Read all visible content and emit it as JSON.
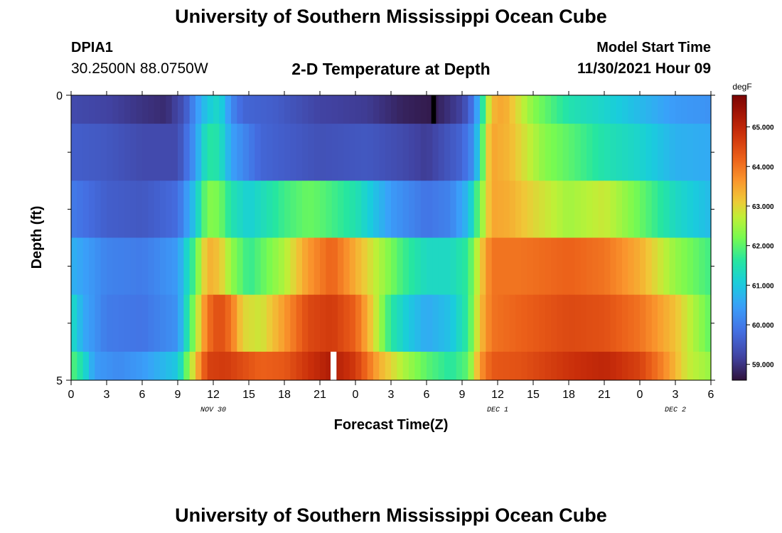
{
  "page": {
    "title_top": "University of Southern Mississippi Ocean Cube",
    "title_bottom": "University of Southern Mississippi Ocean Cube",
    "station": "DPIA1",
    "location": "30.2500N  88.0750W",
    "chart_title": "2-D Temperature at Depth",
    "model_label": "Model Start Time",
    "model_time": "11/30/2021 Hour 09"
  },
  "chart_data": {
    "type": "heatmap",
    "title": "2-D Temperature at Depth",
    "xlabel": "Forecast Time(Z)",
    "ylabel": "Depth (ft)",
    "xlim": [
      0,
      54
    ],
    "ylim": [
      0,
      5
    ],
    "x_ticks": [
      0,
      3,
      6,
      9,
      12,
      15,
      18,
      21,
      24,
      27,
      30,
      33,
      36,
      39,
      42,
      45,
      48,
      51,
      54
    ],
    "x_tick_labels": [
      "0",
      "3",
      "6",
      "9",
      "12",
      "15",
      "18",
      "21",
      "0",
      "3",
      "6",
      "9",
      "12",
      "15",
      "18",
      "21",
      "0",
      "3",
      "6"
    ],
    "date_labels": [
      {
        "text": "NOV 30",
        "x": 12
      },
      {
        "text": "DEC 1",
        "x": 36
      },
      {
        "text": "DEC 2",
        "x": 51
      }
    ],
    "y_ticks": [
      0,
      5
    ],
    "y_tick_labels": [
      "0",
      "5"
    ],
    "y_minor_ticks": [
      1,
      2,
      3,
      4
    ],
    "depth_bins": [
      [
        0,
        0.5
      ],
      [
        0.5,
        1.5
      ],
      [
        1.5,
        2.5
      ],
      [
        2.5,
        3.5
      ],
      [
        3.5,
        4.5
      ],
      [
        4.5,
        5
      ]
    ],
    "colorbar": {
      "unit": "degF",
      "min": 58.6,
      "max": 65.8,
      "ticks": [
        59,
        60,
        61,
        62,
        63,
        64,
        65
      ],
      "tick_labels": [
        "59.000",
        "60.000",
        "61.000",
        "62.000",
        "63.000",
        "64.000",
        "65.000"
      ]
    },
    "gaps": [
      {
        "x": [
          30.4,
          30.8
        ],
        "depth_bin": 0,
        "color": "#000000"
      },
      {
        "x": [
          21.9,
          22.4
        ],
        "depth_bin": 5,
        "color": "#ffffff"
      }
    ],
    "series": [
      {
        "name": "0 ft",
        "knots": [
          [
            0,
            59.3
          ],
          [
            3,
            59.2
          ],
          [
            6,
            59.0
          ],
          [
            8,
            58.9
          ],
          [
            9.5,
            59.4
          ],
          [
            10.5,
            60.3
          ],
          [
            11.5,
            61.0
          ],
          [
            12.5,
            61.3
          ],
          [
            13.5,
            60.2
          ],
          [
            14.5,
            59.7
          ],
          [
            17,
            59.6
          ],
          [
            21,
            59.2
          ],
          [
            25,
            59.1
          ],
          [
            28,
            58.8
          ],
          [
            30.4,
            58.7
          ],
          [
            31,
            58.8
          ],
          [
            33,
            59.2
          ],
          [
            34,
            60.0
          ],
          [
            34.5,
            61.0
          ],
          [
            35,
            62.3
          ],
          [
            35.5,
            63.3
          ],
          [
            36.5,
            63.5
          ],
          [
            39,
            62.3
          ],
          [
            42,
            61.5
          ],
          [
            45,
            61.2
          ],
          [
            48,
            60.8
          ],
          [
            51,
            60.4
          ],
          [
            54,
            60.3
          ]
        ]
      },
      {
        "name": "1 ft",
        "knots": [
          [
            0,
            59.6
          ],
          [
            3,
            59.5
          ],
          [
            6,
            59.3
          ],
          [
            9,
            59.3
          ],
          [
            10.5,
            60.4
          ],
          [
            11.5,
            61.6
          ],
          [
            12.5,
            61.5
          ],
          [
            13.5,
            60.5
          ],
          [
            16,
            59.7
          ],
          [
            21,
            59.4
          ],
          [
            25,
            59.5
          ],
          [
            28,
            59.3
          ],
          [
            30,
            59.1
          ],
          [
            33,
            59.7
          ],
          [
            34,
            60.3
          ],
          [
            34.5,
            61.3
          ],
          [
            35,
            62.8
          ],
          [
            35.5,
            63.5
          ],
          [
            37,
            63.3
          ],
          [
            40,
            62.3
          ],
          [
            42,
            62.0
          ],
          [
            45,
            61.5
          ],
          [
            48,
            61.2
          ],
          [
            51,
            60.7
          ],
          [
            54,
            60.6
          ]
        ]
      },
      {
        "name": "2 ft",
        "knots": [
          [
            0,
            60.0
          ],
          [
            3,
            59.6
          ],
          [
            6,
            59.5
          ],
          [
            9,
            59.8
          ],
          [
            10.5,
            61.0
          ],
          [
            11.5,
            62.3
          ],
          [
            12.5,
            62.2
          ],
          [
            13.5,
            61.5
          ],
          [
            15,
            61.1
          ],
          [
            18,
            61.8
          ],
          [
            20,
            62.1
          ],
          [
            21,
            62.0
          ],
          [
            24,
            61.5
          ],
          [
            27,
            60.4
          ],
          [
            30,
            59.9
          ],
          [
            32,
            60.1
          ],
          [
            33.5,
            60.8
          ],
          [
            34.5,
            62.2
          ],
          [
            35.5,
            63.5
          ],
          [
            37,
            63.4
          ],
          [
            39,
            63.0
          ],
          [
            42,
            62.5
          ],
          [
            45,
            62.8
          ],
          [
            48,
            62.1
          ],
          [
            51,
            61.3
          ],
          [
            54,
            60.8
          ]
        ]
      },
      {
        "name": "3 ft",
        "knots": [
          [
            0,
            60.7
          ],
          [
            3,
            60.1
          ],
          [
            6,
            60.0
          ],
          [
            9,
            60.4
          ],
          [
            10.5,
            62.0
          ],
          [
            11.5,
            63.4
          ],
          [
            12.5,
            63.2
          ],
          [
            13.5,
            62.4
          ],
          [
            15,
            61.7
          ],
          [
            18,
            62.6
          ],
          [
            20,
            63.6
          ],
          [
            22,
            64.2
          ],
          [
            24,
            63.4
          ],
          [
            26,
            62.6
          ],
          [
            28,
            61.8
          ],
          [
            30,
            61.3
          ],
          [
            32,
            61.3
          ],
          [
            33.5,
            61.7
          ],
          [
            34.5,
            63.0
          ],
          [
            35.5,
            64.0
          ],
          [
            38,
            64.0
          ],
          [
            42,
            64.2
          ],
          [
            45,
            64.0
          ],
          [
            48,
            63.4
          ],
          [
            51,
            62.4
          ],
          [
            54,
            61.8
          ]
        ]
      },
      {
        "name": "4 ft",
        "knots": [
          [
            0,
            61.4
          ],
          [
            1,
            60.6
          ],
          [
            3,
            60.0
          ],
          [
            6,
            59.9
          ],
          [
            9,
            60.3
          ],
          [
            10.5,
            62.5
          ],
          [
            11.5,
            64.0
          ],
          [
            12.5,
            64.5
          ],
          [
            13.5,
            64.0
          ],
          [
            14.5,
            63.0
          ],
          [
            16,
            62.8
          ],
          [
            18,
            63.6
          ],
          [
            20,
            64.5
          ],
          [
            22,
            64.7
          ],
          [
            24,
            64.2
          ],
          [
            25.5,
            63.0
          ],
          [
            27,
            61.6
          ],
          [
            28.5,
            61.0
          ],
          [
            30,
            60.6
          ],
          [
            32,
            60.9
          ],
          [
            33.5,
            61.7
          ],
          [
            34.5,
            63.2
          ],
          [
            35.5,
            64.0
          ],
          [
            38,
            64.2
          ],
          [
            42,
            64.5
          ],
          [
            45,
            64.4
          ],
          [
            48,
            64.0
          ],
          [
            51,
            63.2
          ],
          [
            54,
            62.0
          ]
        ]
      },
      {
        "name": "5 ft",
        "knots": [
          [
            0,
            62.0
          ],
          [
            1,
            61.4
          ],
          [
            2,
            60.4
          ],
          [
            4,
            60.2
          ],
          [
            6,
            60.4
          ],
          [
            9,
            61.0
          ],
          [
            10.5,
            63.2
          ],
          [
            11.5,
            64.6
          ],
          [
            13,
            64.7
          ],
          [
            16,
            64.2
          ],
          [
            18,
            64.3
          ],
          [
            20,
            64.8
          ],
          [
            22,
            65.2
          ],
          [
            24,
            64.7
          ],
          [
            26,
            63.4
          ],
          [
            28,
            62.6
          ],
          [
            30,
            62.0
          ],
          [
            32,
            61.6
          ],
          [
            33.5,
            62.0
          ],
          [
            34.5,
            63.6
          ],
          [
            35.5,
            64.3
          ],
          [
            38,
            64.4
          ],
          [
            42,
            64.8
          ],
          [
            45,
            65.0
          ],
          [
            48,
            64.6
          ],
          [
            50,
            63.8
          ],
          [
            52,
            62.8
          ],
          [
            54,
            62.4
          ]
        ]
      }
    ]
  }
}
